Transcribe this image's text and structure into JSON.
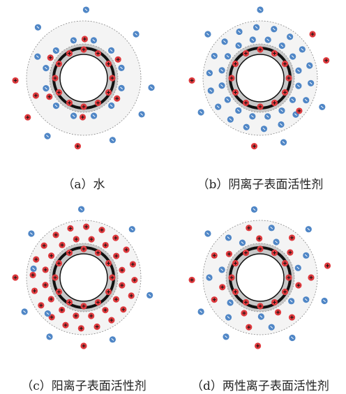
{
  "figure": {
    "colors": {
      "cation": "#e03a3e",
      "anion": "#4f86c6",
      "particle_core": "#ffffff",
      "shell": "#f4f4f4",
      "shell_border": "#888888",
      "adsorbed_band": "#c8c8c8",
      "electrode_ring": "#111111"
    },
    "legend_symbols": {
      "cation": "+",
      "anion": "-"
    },
    "panels": [
      {
        "id": "a",
        "caption": "（a）水",
        "rings": [
          {
            "count": 12,
            "type": "cation",
            "offset": 0.0,
            "ring": "inner"
          },
          {
            "count": 12,
            "type": "anion",
            "offset": 0.26,
            "ring": "middle"
          },
          {
            "count": 6,
            "type": "cation",
            "offset": 0.55,
            "ring": "middle"
          }
        ],
        "outer_particles": [
          {
            "type": "anion",
            "angle": -88,
            "ring": "far"
          },
          {
            "type": "anion",
            "angle": -132,
            "ring": "far"
          },
          {
            "type": "anion",
            "angle": -40,
            "ring": "far"
          },
          {
            "type": "cation",
            "angle": 178,
            "ring": "far"
          },
          {
            "type": "cation",
            "angle": 145,
            "ring": "far"
          },
          {
            "type": "anion",
            "angle": 122,
            "ring": "far"
          },
          {
            "type": "cation",
            "angle": 95,
            "ring": "far"
          },
          {
            "type": "anion",
            "angle": 65,
            "ring": "far"
          },
          {
            "type": "anion",
            "angle": 32,
            "ring": "far"
          },
          {
            "type": "anion",
            "angle": 8,
            "ring": "far"
          },
          {
            "type": "anion",
            "angle": -155,
            "ring": "shell"
          },
          {
            "type": "cation",
            "angle": 160,
            "ring": "shell"
          }
        ]
      },
      {
        "id": "b",
        "caption": "（b）阴离子表面活性剂",
        "rings": [
          {
            "count": 12,
            "type": "cation",
            "offset": 0.0,
            "ring": "inner"
          },
          {
            "count": 16,
            "type": "anion",
            "offset": 0.2,
            "ring": "middle"
          },
          {
            "count": 18,
            "type": "anion",
            "offset": 0.1,
            "ring": "shell"
          }
        ],
        "outer_particles": [
          {
            "type": "anion",
            "angle": -90,
            "ring": "far"
          },
          {
            "type": "anion",
            "angle": -140,
            "ring": "far"
          },
          {
            "type": "cation",
            "angle": -40,
            "ring": "far"
          },
          {
            "type": "cation",
            "angle": 178,
            "ring": "far"
          },
          {
            "type": "anion",
            "angle": 150,
            "ring": "far"
          },
          {
            "type": "cation",
            "angle": 95,
            "ring": "far"
          },
          {
            "type": "anion",
            "angle": 70,
            "ring": "far"
          },
          {
            "type": "anion",
            "angle": 25,
            "ring": "far"
          },
          {
            "type": "cation",
            "angle": -15,
            "ring": "far"
          },
          {
            "type": "cation",
            "angle": 40,
            "ring": "shell"
          }
        ]
      },
      {
        "id": "c",
        "caption": "（c）阳离子表面活性剂",
        "rings": [
          {
            "count": 12,
            "type": "cation",
            "offset": 0.0,
            "ring": "inner"
          },
          {
            "count": 16,
            "type": "cation",
            "offset": 0.2,
            "ring": "middle"
          },
          {
            "count": 20,
            "type": "cation",
            "offset": 0.05,
            "ring": "shell"
          }
        ],
        "outer_particles": [
          {
            "type": "anion",
            "angle": -92,
            "ring": "far"
          },
          {
            "type": "anion",
            "angle": -140,
            "ring": "far"
          },
          {
            "type": "anion",
            "angle": -45,
            "ring": "far"
          },
          {
            "type": "cation",
            "angle": 180,
            "ring": "far"
          },
          {
            "type": "anion",
            "angle": 150,
            "ring": "far"
          },
          {
            "type": "anion",
            "angle": 120,
            "ring": "far"
          },
          {
            "type": "cation",
            "angle": 90,
            "ring": "far"
          },
          {
            "type": "anion",
            "angle": 65,
            "ring": "far"
          },
          {
            "type": "anion",
            "angle": 15,
            "ring": "far"
          },
          {
            "type": "anion",
            "angle": -170,
            "ring": "shell"
          },
          {
            "type": "anion",
            "angle": 135,
            "ring": "shell"
          }
        ]
      },
      {
        "id": "d",
        "caption": "（d）两性离子表面活性剂",
        "rings": [
          {
            "count": 12,
            "type": "cation",
            "offset": 0.0,
            "ring": "inner"
          },
          {
            "count": 14,
            "type": "mixed",
            "offset": 0.2,
            "ring": "middle"
          },
          {
            "count": 14,
            "type": "mixed",
            "offset": 0.0,
            "ring": "shell"
          }
        ],
        "outer_particles": [
          {
            "type": "anion",
            "angle": -95,
            "ring": "far"
          },
          {
            "type": "anion",
            "angle": -140,
            "ring": "far"
          },
          {
            "type": "anion",
            "angle": -45,
            "ring": "far"
          },
          {
            "type": "cation",
            "angle": 178,
            "ring": "far"
          },
          {
            "type": "anion",
            "angle": 150,
            "ring": "far"
          },
          {
            "type": "anion",
            "angle": 120,
            "ring": "far"
          },
          {
            "type": "cation",
            "angle": 92,
            "ring": "far"
          },
          {
            "type": "anion",
            "angle": 62,
            "ring": "far"
          },
          {
            "type": "anion",
            "angle": 20,
            "ring": "far"
          },
          {
            "type": "cation",
            "angle": -10,
            "ring": "far"
          }
        ]
      }
    ]
  }
}
